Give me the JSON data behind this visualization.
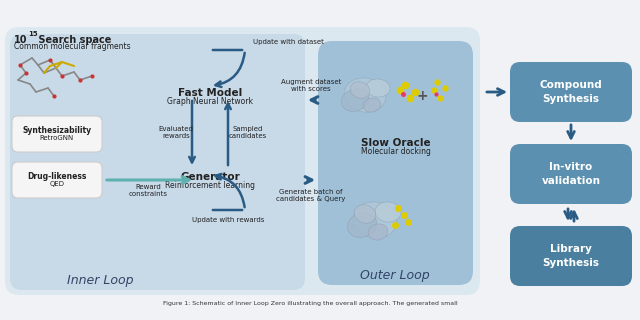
{
  "fig_bg": "#f0f2f5",
  "outer_bg": "#dce8f0",
  "inner_bg": "#c8d9e8",
  "oracle_bg": "#a0c0d8",
  "right_box1_color": "#5b90b0",
  "right_box2_color": "#5b90b0",
  "right_box3_color": "#4a7f9f",
  "arrow_dark": "#2a5b85",
  "arrow_teal": "#60b0b0",
  "white_box_bg": "#f5f5f5",
  "white_box_ec": "#cccccc",
  "text_dark": "#222222",
  "text_white": "#ffffff",
  "search_space_title": "10",
  "search_space_exp": "15",
  "search_space_rest": " Search space",
  "search_space_sub": "Common molecular fragments",
  "fast_model_title": "Fast Model",
  "fast_model_sub": "Graph Neural Network",
  "generator_title": "Generator",
  "generator_sub": "Reinforcement learning",
  "slow_oracle_title": "Slow Oracle",
  "slow_oracle_sub": "Molecular docking",
  "synth_title": "Synthesizability",
  "synth_sub": "RetroGNN",
  "drug_title": "Drug-likeness",
  "drug_sub": "QED",
  "compound_synth": "Compound\nSynthesis",
  "invitro": "In-vitro\nvalidation",
  "library": "Library\nSynthesis",
  "update_dataset": "Update with dataset",
  "augment_dataset": "Augment dataset\nwith scores",
  "generate_batch": "Generate batch of\ncandidates & Query",
  "evaluated_rewards": "Evaluated\nrewards",
  "sampled_candidates": "Sampled\ncandidates",
  "reward_constraints": "Reward\nconstraints",
  "update_rewards": "Update with rewards",
  "inner_loop_label": "Inner Loop",
  "outer_loop_label": "Outer Loop",
  "caption": "Figure 1: Schematic of Inner Loop Zero illustrating the overall approach. The generated small"
}
